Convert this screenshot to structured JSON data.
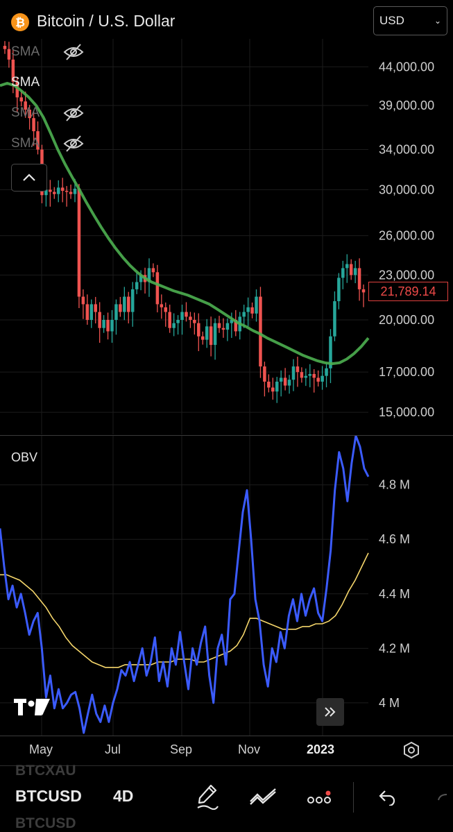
{
  "header": {
    "title": "Bitcoin / U.S. Dollar",
    "currency_select": "USD"
  },
  "indicators": {
    "sma_labels": [
      "SMA",
      "SMA",
      "SMA",
      "SMA"
    ],
    "obv_label": "OBV"
  },
  "price_axis_labels": [
    "44,000.00",
    "39,000.00",
    "34,000.00",
    "30,000.00",
    "26,000.00",
    "23,000.00",
    "20,000.00",
    "17,000.00",
    "15,000.00"
  ],
  "current_price": "21,789.14",
  "obv_axis_labels": [
    "4.8 M",
    "4.6 M",
    "4.4 M",
    "4.2 M",
    "4 M"
  ],
  "x_axis_labels": [
    "May",
    "Jul",
    "Sep",
    "Nov",
    "2023"
  ],
  "bottom_bar": {
    "ghost_top": "BTCXAU",
    "symbol": "BTCUSD",
    "interval": "4D",
    "ghost_bottom": "BTCUSD"
  },
  "colors": {
    "up": "#26a69a",
    "down": "#ef5350",
    "sma": "#4caf50",
    "obv": "#3b5bfd",
    "obv_ma": "#f5d66b",
    "accent_bitcoin": "#f7931a"
  },
  "chart_data": [
    {
      "type": "candlestick",
      "title": "Bitcoin / U.S. Dollar",
      "y_scale": "log",
      "ylim": [
        14000,
        48000
      ],
      "x_ticks": [
        "May",
        "Jul",
        "Sep",
        "Nov",
        "2023"
      ],
      "y_ticks": [
        44000,
        39000,
        34000,
        30000,
        26000,
        23000,
        20000,
        17000,
        15000
      ],
      "last_price": 21789.14,
      "series": [
        {
          "name": "BTCUSD",
          "close": [
            46500,
            45000,
            42000,
            40000,
            39500,
            38500,
            37500,
            36000,
            34000,
            29500,
            30000,
            29800,
            29600,
            30200,
            29900,
            29800,
            29600,
            30100,
            21500,
            21000,
            20000,
            21000,
            20500,
            19500,
            20000,
            19300,
            20000,
            21000,
            20500,
            21500,
            20500,
            22000,
            22500,
            23000,
            22500,
            23500,
            23200,
            21000,
            20800,
            20500,
            19500,
            19800,
            20000,
            20500,
            20200,
            20000,
            19800,
            19000,
            18800,
            19600,
            18500,
            19800,
            19500,
            19400,
            19800,
            20000,
            19300,
            20200,
            20500,
            20800,
            20400,
            21500,
            17300,
            16500,
            16200,
            16000,
            16500,
            16700,
            16300,
            16600,
            17300,
            17000,
            16700,
            16800,
            16900,
            16700,
            16500,
            16800,
            17200,
            19000,
            21200,
            22800,
            23500,
            23800,
            23000,
            23500,
            22000,
            21789
          ]
        },
        {
          "name": "SMA",
          "values": [
            41500,
            41800,
            41500,
            40800,
            40000,
            39000,
            37600,
            35800,
            34000,
            32500,
            31200,
            30000,
            28800,
            27700,
            26700,
            25800,
            25000,
            24300,
            23700,
            23200,
            22800,
            22500,
            22300,
            22100,
            21900,
            21750,
            21600,
            21400,
            21200,
            21000,
            20700,
            20400,
            20100,
            19800,
            19600,
            19350,
            19150,
            18900,
            18700,
            18500,
            18300,
            18100,
            17900,
            17750,
            17600,
            17500,
            17450,
            17500,
            17700,
            18000,
            18400,
            18900
          ]
        }
      ]
    },
    {
      "type": "line",
      "title": "OBV",
      "ylim": [
        3.88,
        4.98
      ],
      "y_ticks": [
        4.8,
        4.6,
        4.4,
        4.2,
        4.0
      ],
      "x_ticks": [
        "May",
        "Jul",
        "Sep",
        "Nov",
        "2023"
      ],
      "series": [
        {
          "name": "OBV",
          "values": [
            4.64,
            4.5,
            4.38,
            4.43,
            4.35,
            4.4,
            4.33,
            4.25,
            4.3,
            4.33,
            4.2,
            4.02,
            4.1,
            3.98,
            4.05,
            3.98,
            4.0,
            4.03,
            4.04,
            3.98,
            3.89,
            3.96,
            4.03,
            3.96,
            3.93,
            3.99,
            3.93,
            4.0,
            4.05,
            4.12,
            4.1,
            4.15,
            4.08,
            4.14,
            4.2,
            4.1,
            4.15,
            4.24,
            4.08,
            4.15,
            4.06,
            4.2,
            4.14,
            4.26,
            4.15,
            4.05,
            4.2,
            4.14,
            4.22,
            4.28,
            4.1,
            4.0,
            4.2,
            4.25,
            4.14,
            4.38,
            4.4,
            4.55,
            4.7,
            4.78,
            4.6,
            4.38,
            4.3,
            4.14,
            4.06,
            4.2,
            4.15,
            4.26,
            4.2,
            4.32,
            4.38,
            4.3,
            4.4,
            4.32,
            4.38,
            4.42,
            4.33,
            4.3,
            4.42,
            4.56,
            4.78,
            4.92,
            4.86,
            4.74,
            4.88,
            4.98,
            4.94,
            4.86,
            4.83
          ]
        },
        {
          "name": "OBV MA",
          "values": [
            4.47,
            4.47,
            4.46,
            4.45,
            4.43,
            4.41,
            4.38,
            4.35,
            4.31,
            4.28,
            4.24,
            4.21,
            4.19,
            4.17,
            4.15,
            4.14,
            4.13,
            4.13,
            4.13,
            4.14,
            4.14,
            4.14,
            4.14,
            4.14,
            4.15,
            4.15,
            4.15,
            4.16,
            4.16,
            4.16,
            4.15,
            4.15,
            4.16,
            4.17,
            4.18,
            4.19,
            4.21,
            4.25,
            4.31,
            4.31,
            4.3,
            4.29,
            4.28,
            4.27,
            4.27,
            4.27,
            4.28,
            4.28,
            4.29,
            4.29,
            4.3,
            4.32,
            4.36,
            4.41,
            4.45,
            4.5,
            4.55
          ]
        }
      ]
    }
  ]
}
